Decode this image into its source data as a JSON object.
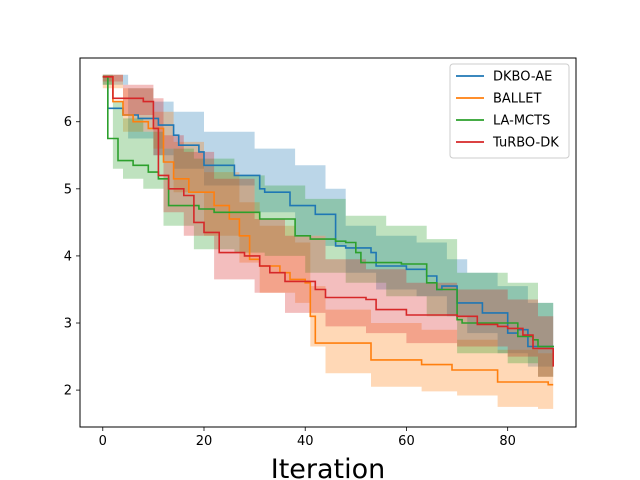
{
  "chart_data": {
    "type": "line",
    "title": "",
    "xlabel": "Iteration",
    "ylabel": "",
    "xlim": [
      -4.5,
      93.5
    ],
    "ylim": [
      1.45,
      6.95
    ],
    "xticks": [
      0,
      20,
      40,
      60,
      80
    ],
    "yticks": [
      2,
      3,
      4,
      5,
      6
    ],
    "grid": false,
    "legend_position": "top-right",
    "series": [
      {
        "name": "DKBO-AE",
        "color": "#1f77b4",
        "mean": [
          [
            0,
            6.67
          ],
          [
            1,
            6.2
          ],
          [
            4,
            6.1
          ],
          [
            7,
            6.05
          ],
          [
            11,
            5.95
          ],
          [
            14,
            5.8
          ],
          [
            15,
            5.65
          ],
          [
            19,
            5.55
          ],
          [
            20,
            5.35
          ],
          [
            26,
            5.2
          ],
          [
            31,
            5.0
          ],
          [
            32,
            4.95
          ],
          [
            37,
            4.75
          ],
          [
            42,
            4.62
          ],
          [
            46,
            4.15
          ],
          [
            48,
            4.12
          ],
          [
            53,
            4.05
          ],
          [
            54,
            3.85
          ],
          [
            60,
            3.8
          ],
          [
            64,
            3.7
          ],
          [
            66,
            3.5
          ],
          [
            67,
            3.55
          ],
          [
            70,
            3.3
          ],
          [
            75,
            3.15
          ],
          [
            80,
            2.85
          ],
          [
            82,
            2.9
          ],
          [
            84,
            2.65
          ],
          [
            89,
            2.66
          ]
        ],
        "upper": [
          [
            0,
            6.7
          ],
          [
            5,
            6.5
          ],
          [
            10,
            6.3
          ],
          [
            14,
            6.15
          ],
          [
            20,
            5.85
          ],
          [
            30,
            5.6
          ],
          [
            38,
            5.35
          ],
          [
            44,
            5.0
          ],
          [
            48,
            4.45
          ],
          [
            54,
            4.3
          ],
          [
            62,
            4.2
          ],
          [
            68,
            3.95
          ],
          [
            72,
            3.75
          ],
          [
            78,
            3.55
          ],
          [
            84,
            3.3
          ],
          [
            89,
            3.05
          ]
        ],
        "lower": [
          [
            0,
            6.55
          ],
          [
            5,
            5.75
          ],
          [
            10,
            5.5
          ],
          [
            14,
            5.3
          ],
          [
            20,
            5.05
          ],
          [
            30,
            4.65
          ],
          [
            38,
            4.3
          ],
          [
            44,
            4.15
          ],
          [
            48,
            3.75
          ],
          [
            54,
            3.5
          ],
          [
            62,
            3.4
          ],
          [
            68,
            3.1
          ],
          [
            72,
            2.85
          ],
          [
            78,
            2.55
          ],
          [
            84,
            2.35
          ],
          [
            89,
            2.3
          ]
        ]
      },
      {
        "name": "BALLET",
        "color": "#ff7f0e",
        "mean": [
          [
            0,
            6.67
          ],
          [
            2,
            6.3
          ],
          [
            4,
            6.1
          ],
          [
            6,
            6.0
          ],
          [
            9,
            5.9
          ],
          [
            12,
            5.4
          ],
          [
            14,
            5.15
          ],
          [
            17,
            4.95
          ],
          [
            22,
            4.75
          ],
          [
            25,
            4.55
          ],
          [
            27,
            4.3
          ],
          [
            29,
            3.95
          ],
          [
            31,
            3.85
          ],
          [
            35,
            3.75
          ],
          [
            37,
            3.65
          ],
          [
            40,
            3.6
          ],
          [
            41,
            3.1
          ],
          [
            42,
            2.7
          ],
          [
            53,
            2.45
          ],
          [
            63,
            2.38
          ],
          [
            69,
            2.3
          ],
          [
            78,
            2.12
          ],
          [
            86,
            2.12
          ],
          [
            88,
            2.08
          ],
          [
            89,
            2.08
          ]
        ],
        "upper": [
          [
            0,
            6.7
          ],
          [
            4,
            6.5
          ],
          [
            10,
            6.15
          ],
          [
            14,
            5.7
          ],
          [
            20,
            5.25
          ],
          [
            27,
            4.8
          ],
          [
            31,
            4.45
          ],
          [
            38,
            4.2
          ],
          [
            41,
            3.55
          ],
          [
            44,
            3.2
          ],
          [
            53,
            3.0
          ],
          [
            63,
            2.9
          ],
          [
            70,
            2.75
          ],
          [
            78,
            2.6
          ],
          [
            86,
            2.55
          ],
          [
            89,
            2.5
          ]
        ],
        "lower": [
          [
            0,
            6.5
          ],
          [
            4,
            5.85
          ],
          [
            10,
            5.6
          ],
          [
            14,
            4.95
          ],
          [
            20,
            4.3
          ],
          [
            27,
            3.9
          ],
          [
            31,
            3.45
          ],
          [
            38,
            3.3
          ],
          [
            41,
            2.65
          ],
          [
            44,
            2.25
          ],
          [
            53,
            2.05
          ],
          [
            63,
            1.98
          ],
          [
            70,
            1.92
          ],
          [
            78,
            1.75
          ],
          [
            86,
            1.72
          ],
          [
            89,
            1.7
          ]
        ]
      },
      {
        "name": "LA-MCTS",
        "color": "#2ca02c",
        "mean": [
          [
            0,
            6.67
          ],
          [
            1,
            5.75
          ],
          [
            3,
            5.42
          ],
          [
            6,
            5.35
          ],
          [
            9,
            5.25
          ],
          [
            11,
            5.15
          ],
          [
            13,
            4.75
          ],
          [
            19,
            4.7
          ],
          [
            22,
            4.65
          ],
          [
            31,
            4.55
          ],
          [
            34,
            4.55
          ],
          [
            38,
            4.3
          ],
          [
            41,
            4.25
          ],
          [
            46,
            4.22
          ],
          [
            48,
            4.2
          ],
          [
            50,
            4.05
          ],
          [
            51,
            3.9
          ],
          [
            59,
            3.88
          ],
          [
            64,
            3.6
          ],
          [
            66,
            3.5
          ],
          [
            70,
            3.05
          ],
          [
            71,
            3.0
          ],
          [
            82,
            2.8
          ],
          [
            85,
            2.75
          ],
          [
            86,
            2.65
          ],
          [
            89,
            2.66
          ]
        ],
        "upper": [
          [
            0,
            6.7
          ],
          [
            2,
            6.3
          ],
          [
            4,
            6.05
          ],
          [
            8,
            5.85
          ],
          [
            12,
            5.6
          ],
          [
            18,
            5.45
          ],
          [
            26,
            5.2
          ],
          [
            32,
            5.05
          ],
          [
            40,
            4.85
          ],
          [
            48,
            4.6
          ],
          [
            56,
            4.45
          ],
          [
            64,
            4.25
          ],
          [
            70,
            3.75
          ],
          [
            80,
            3.6
          ],
          [
            86,
            3.3
          ],
          [
            89,
            3.25
          ]
        ],
        "lower": [
          [
            0,
            6.55
          ],
          [
            2,
            5.3
          ],
          [
            4,
            5.15
          ],
          [
            8,
            5.0
          ],
          [
            12,
            4.45
          ],
          [
            18,
            4.1
          ],
          [
            26,
            4.05
          ],
          [
            32,
            4.0
          ],
          [
            40,
            3.75
          ],
          [
            48,
            3.6
          ],
          [
            56,
            3.4
          ],
          [
            64,
            3.1
          ],
          [
            70,
            2.55
          ],
          [
            80,
            2.4
          ],
          [
            86,
            2.2
          ],
          [
            89,
            2.15
          ]
        ]
      },
      {
        "name": "TuRBO-DK",
        "color": "#d62728",
        "mean": [
          [
            0,
            6.67
          ],
          [
            2,
            6.35
          ],
          [
            8,
            6.3
          ],
          [
            10,
            5.9
          ],
          [
            11,
            5.2
          ],
          [
            13,
            5.0
          ],
          [
            16,
            4.9
          ],
          [
            18,
            4.5
          ],
          [
            20,
            4.35
          ],
          [
            23,
            4.05
          ],
          [
            28,
            4.0
          ],
          [
            31,
            3.85
          ],
          [
            33,
            3.75
          ],
          [
            36,
            3.62
          ],
          [
            42,
            3.5
          ],
          [
            44,
            3.38
          ],
          [
            52,
            3.35
          ],
          [
            54,
            3.2
          ],
          [
            60,
            3.12
          ],
          [
            70,
            3.1
          ],
          [
            74,
            2.98
          ],
          [
            78,
            2.95
          ],
          [
            80,
            2.92
          ],
          [
            83,
            2.82
          ],
          [
            85,
            2.62
          ],
          [
            89,
            2.35
          ]
        ],
        "upper": [
          [
            0,
            6.7
          ],
          [
            4,
            6.55
          ],
          [
            10,
            6.35
          ],
          [
            12,
            5.8
          ],
          [
            16,
            5.55
          ],
          [
            22,
            5.15
          ],
          [
            30,
            4.55
          ],
          [
            36,
            4.3
          ],
          [
            44,
            3.95
          ],
          [
            52,
            3.8
          ],
          [
            60,
            3.6
          ],
          [
            70,
            3.5
          ],
          [
            80,
            3.35
          ],
          [
            86,
            3.1
          ],
          [
            89,
            2.85
          ]
        ],
        "lower": [
          [
            0,
            6.6
          ],
          [
            4,
            6.1
          ],
          [
            10,
            5.5
          ],
          [
            12,
            4.65
          ],
          [
            16,
            4.3
          ],
          [
            22,
            3.65
          ],
          [
            30,
            3.45
          ],
          [
            36,
            3.15
          ],
          [
            44,
            2.95
          ],
          [
            52,
            2.85
          ],
          [
            60,
            2.7
          ],
          [
            70,
            2.65
          ],
          [
            80,
            2.5
          ],
          [
            86,
            2.2
          ],
          [
            89,
            2.0
          ]
        ]
      }
    ]
  }
}
